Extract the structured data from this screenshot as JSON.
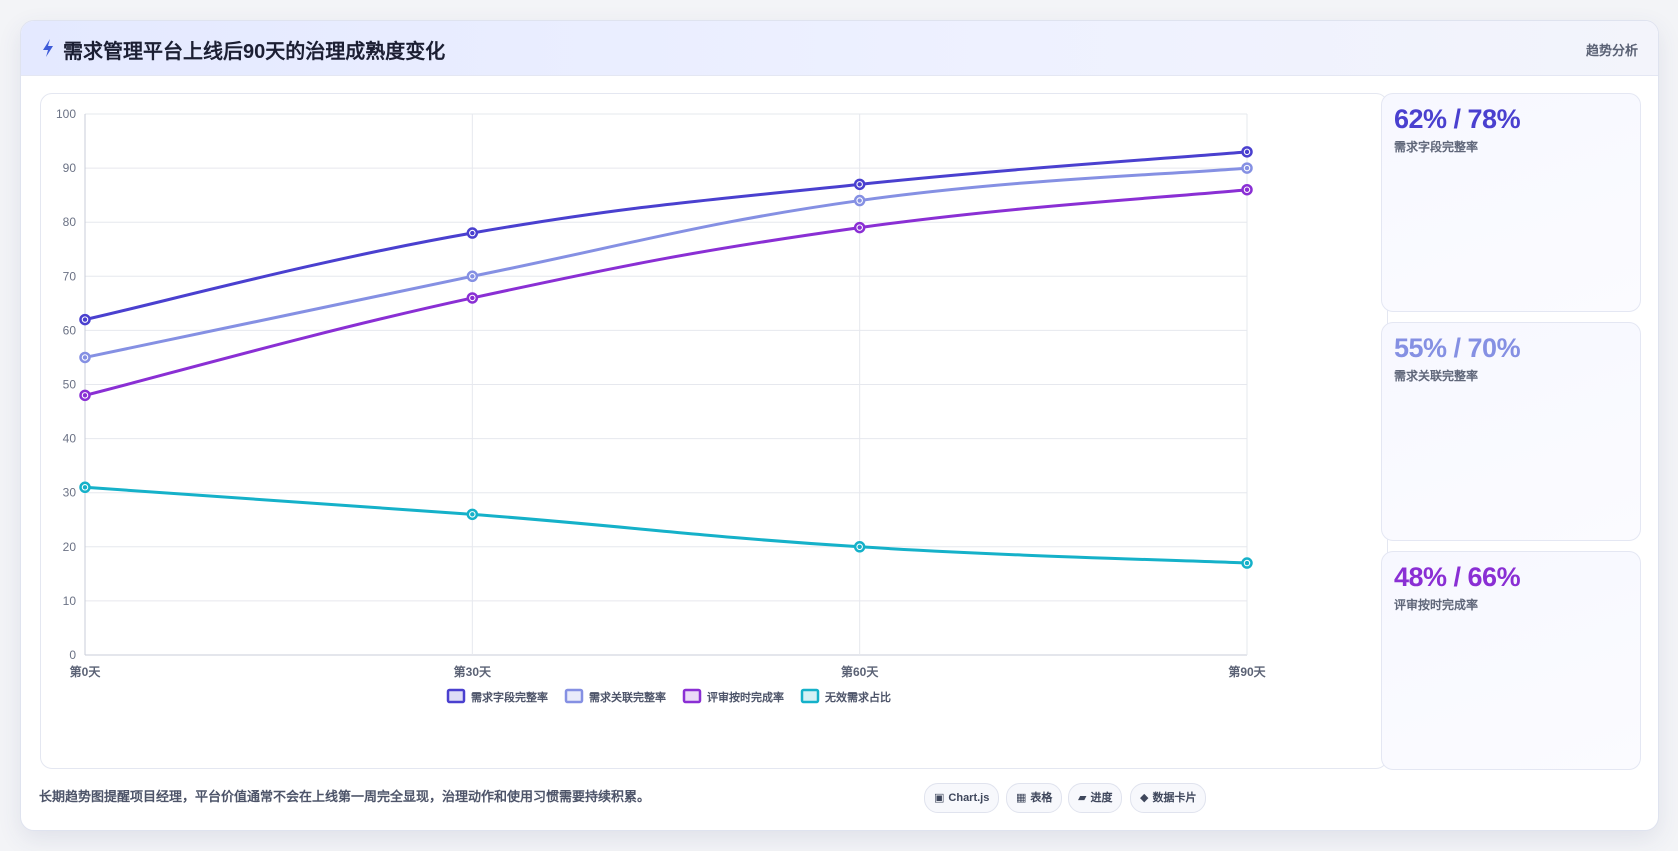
{
  "header": {
    "title": "需求管理平台上线后90天的治理成熟度变化",
    "tag": "趋势分析",
    "icon": "lightning-icon"
  },
  "chart_data": {
    "type": "line",
    "categories": [
      "第0天",
      "第30天",
      "第60天",
      "第90天"
    ],
    "ylim": [
      0,
      100
    ],
    "yticks": [
      0,
      10,
      20,
      30,
      40,
      50,
      60,
      70,
      80,
      90,
      100
    ],
    "grid": true,
    "legend_position": "bottom-center",
    "series": [
      {
        "name": "需求字段完整率",
        "values": [
          62,
          78,
          87,
          93
        ],
        "color": "#4a40cf"
      },
      {
        "name": "需求关联完整率",
        "values": [
          55,
          70,
          84,
          90
        ],
        "color": "#8590e3"
      },
      {
        "name": "评审按时完成率",
        "values": [
          48,
          66,
          79,
          86
        ],
        "color": "#8a2fd4"
      },
      {
        "name": "无效需求占比",
        "values": [
          31,
          26,
          20,
          17
        ],
        "color": "#15b1c9"
      }
    ]
  },
  "kpis": [
    {
      "value": "62% / 78%",
      "label": "需求字段完整率",
      "color": "#4a40cf"
    },
    {
      "value": "55% / 70%",
      "label": "需求关联完整率",
      "color": "#8590e3"
    },
    {
      "value": "48% / 66%",
      "label": "评审按时完成率",
      "color": "#8a2fd4"
    }
  ],
  "footer": {
    "note": "长期趋势图提醒项目经理，平台价值通常不会在上线第一周完全显现，治理动作和使用习惯需要持续积累。",
    "chips": [
      {
        "icon": "▣",
        "label": "Chart.js"
      },
      {
        "icon": "▦",
        "label": "表格"
      },
      {
        "icon": "▰",
        "label": "进度"
      },
      {
        "icon": "◆",
        "label": "数据卡片"
      }
    ]
  }
}
